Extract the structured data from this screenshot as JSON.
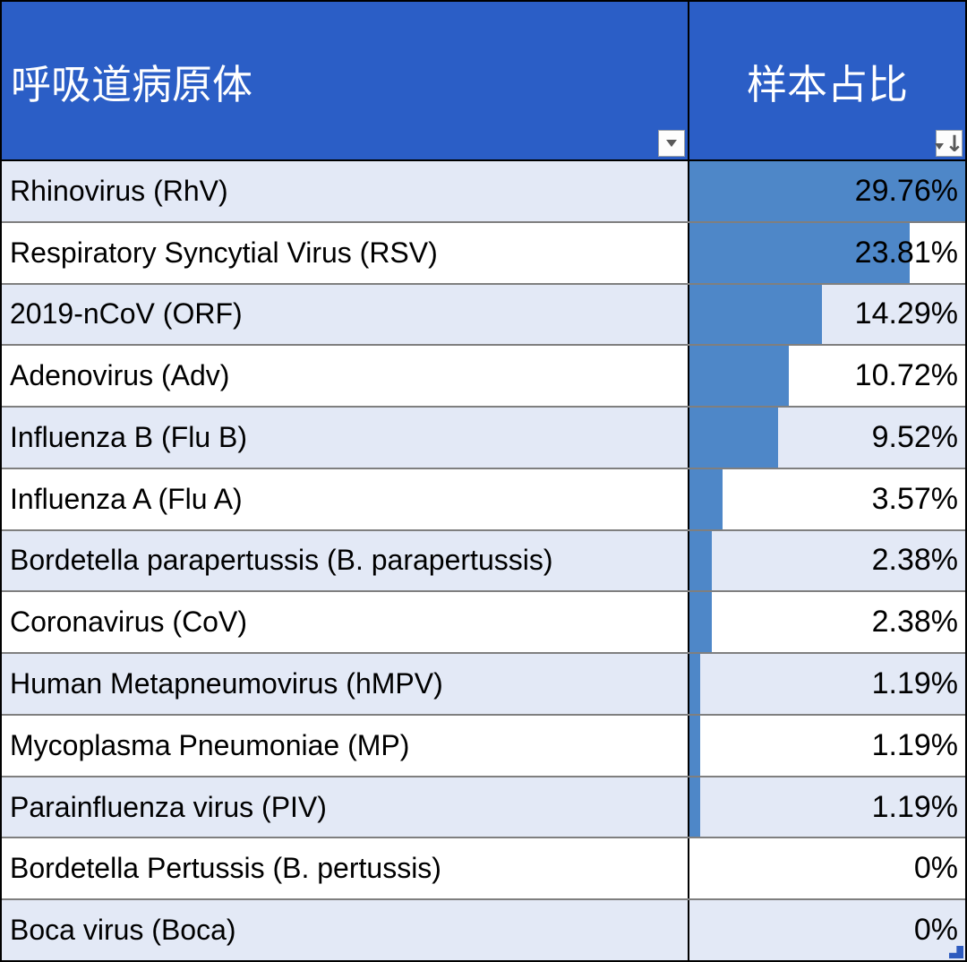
{
  "table": {
    "header": {
      "pathogen_label": "呼吸道病原体",
      "share_label": "样本占比"
    },
    "rows": [
      {
        "pathogen": "Rhinovirus (RhV)",
        "share": "29.76%"
      },
      {
        "pathogen": "Respiratory Syncytial Virus (RSV)",
        "share": "23.81%"
      },
      {
        "pathogen": "2019-nCoV (ORF)",
        "share": "14.29%"
      },
      {
        "pathogen": "Adenovirus (Adv)",
        "share": "10.72%"
      },
      {
        "pathogen": "Influenza B (Flu B)",
        "share": "9.52%"
      },
      {
        "pathogen": "Influenza A (Flu A)",
        "share": "3.57%"
      },
      {
        "pathogen": "Bordetella parapertussis (B. parapertussis)",
        "share": "2.38%"
      },
      {
        "pathogen": "Coronavirus (CoV)",
        "share": "2.38%"
      },
      {
        "pathogen": "Human Metapneumovirus (hMPV)",
        "share": "1.19%"
      },
      {
        "pathogen": "Mycoplasma Pneumoniae (MP)",
        "share": "1.19%"
      },
      {
        "pathogen": "Parainfluenza virus (PIV)",
        "share": "1.19%"
      },
      {
        "pathogen": "Bordetella Pertussis (B. pertussis)",
        "share": "0%"
      },
      {
        "pathogen": "Boca virus (Boca)",
        "share": "0%"
      }
    ]
  },
  "chart_data": {
    "type": "table",
    "title": "呼吸道病原体 样本占比",
    "columns": [
      "呼吸道病原体",
      "样本占比"
    ],
    "categories": [
      "Rhinovirus (RhV)",
      "Respiratory Syncytial Virus (RSV)",
      "2019-nCoV (ORF)",
      "Adenovirus (Adv)",
      "Influenza B (Flu B)",
      "Influenza A (Flu A)",
      "Bordetella parapertussis (B. parapertussis)",
      "Coronavirus (CoV)",
      "Human Metapneumovirus (hMPV)",
      "Mycoplasma Pneumoniae (MP)",
      "Parainfluenza virus (PIV)",
      "Bordetella Pertussis (B. pertussis)",
      "Boca virus (Boca)"
    ],
    "values": [
      29.76,
      23.81,
      14.29,
      10.72,
      9.52,
      3.57,
      2.38,
      2.38,
      1.19,
      1.19,
      1.19,
      0,
      0
    ],
    "value_unit": "%",
    "databar_max": 29.76,
    "sort": "descending-by-share"
  },
  "colors": {
    "header_background": "#2B5EC6",
    "databar_fill": "#4E87C8",
    "banded_row_background": "#E3E9F6",
    "plain_row_background": "#FFFFFF",
    "grid_line": "#7F7F7F",
    "outer_border": "#000000",
    "resize_handle": "#2E5BBF"
  }
}
